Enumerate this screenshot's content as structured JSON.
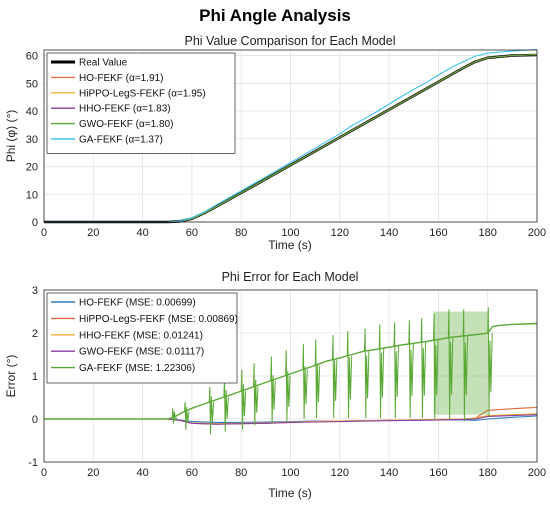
{
  "figure": {
    "title": "Phi Angle Analysis"
  },
  "chart_data": [
    {
      "type": "line",
      "title": "Phi Value Comparison for Each Model",
      "xlabel": "Time (s)",
      "ylabel": "Phi (φ) (°)",
      "xlim": [
        0,
        200
      ],
      "ylim": [
        0,
        62
      ],
      "xticks": [
        "0",
        "20",
        "40",
        "60",
        "80",
        "100",
        "120",
        "140",
        "160",
        "180",
        "200"
      ],
      "yticks": [
        "0",
        "10",
        "20",
        "30",
        "40",
        "50",
        "60"
      ],
      "grid": true,
      "legend_position": "top-left",
      "series": [
        {
          "name": "Real Value",
          "color": "#000000",
          "width": 2.6,
          "x": [
            0,
            50,
            55,
            60,
            65,
            70,
            80,
            90,
            100,
            110,
            120,
            130,
            140,
            150,
            160,
            170,
            175,
            180,
            190,
            200
          ],
          "y": [
            0,
            0,
            0.2,
            1.2,
            3.2,
            5.6,
            10.5,
            15.5,
            20.5,
            25.5,
            30.5,
            35.5,
            40.5,
            45.5,
            50.5,
            55.5,
            57.8,
            59.2,
            60.0,
            60.2
          ]
        },
        {
          "name": "HO-FEKF (α=1.91)",
          "color": "#e8764a",
          "width": 1.1,
          "x": [
            0,
            50,
            55,
            60,
            65,
            70,
            80,
            90,
            100,
            110,
            120,
            130,
            140,
            150,
            160,
            170,
            175,
            180,
            190,
            200
          ],
          "y": [
            0,
            0,
            0.2,
            1.2,
            3.2,
            5.6,
            10.5,
            15.5,
            20.5,
            25.5,
            30.5,
            35.5,
            40.5,
            45.5,
            50.5,
            55.5,
            57.8,
            59.2,
            60.0,
            60.3
          ]
        },
        {
          "name": "HiPPO-LegS-FEKF (α=1.95)",
          "color": "#f2b233",
          "width": 1.1,
          "x": [
            0,
            50,
            55,
            60,
            65,
            70,
            80,
            90,
            100,
            110,
            120,
            130,
            140,
            150,
            160,
            170,
            175,
            180,
            190,
            200
          ],
          "y": [
            0,
            0,
            0.2,
            1.2,
            3.2,
            5.6,
            10.5,
            15.5,
            20.5,
            25.5,
            30.5,
            35.5,
            40.5,
            45.5,
            50.5,
            55.5,
            57.8,
            59.2,
            60.0,
            60.3
          ]
        },
        {
          "name": "HHO-FEKF (α=1.83)",
          "color": "#8a3fa0",
          "width": 1.1,
          "x": [
            0,
            50,
            55,
            60,
            65,
            70,
            80,
            90,
            100,
            110,
            120,
            130,
            140,
            150,
            160,
            170,
            175,
            180,
            190,
            200
          ],
          "y": [
            0,
            0,
            0.2,
            1.2,
            3.2,
            5.6,
            10.5,
            15.5,
            20.5,
            25.5,
            30.5,
            35.5,
            40.5,
            45.5,
            50.5,
            55.5,
            57.8,
            59.2,
            60.0,
            60.3
          ]
        },
        {
          "name": "GWO-FEKF (α=1.80)",
          "color": "#5aa834",
          "width": 1.1,
          "x": [
            0,
            50,
            55,
            60,
            65,
            70,
            80,
            90,
            100,
            110,
            120,
            130,
            140,
            150,
            160,
            170,
            175,
            180,
            190,
            200
          ],
          "y": [
            0,
            0,
            0.2,
            1.2,
            3.2,
            5.6,
            10.5,
            15.5,
            20.5,
            25.5,
            30.5,
            35.5,
            40.5,
            45.5,
            50.5,
            55.5,
            57.8,
            59.2,
            60.0,
            60.3
          ]
        },
        {
          "name": "GA-FEKF (α=1.37)",
          "color": "#3ec1ee",
          "width": 1.1,
          "x": [
            0,
            50,
            55,
            60,
            65,
            70,
            80,
            90,
            100,
            110,
            120,
            125,
            130,
            135,
            140,
            145,
            150,
            155,
            160,
            165,
            170,
            175,
            180,
            190,
            200
          ],
          "y": [
            0,
            0,
            0.3,
            1.5,
            3.6,
            6.2,
            11.2,
            16.3,
            21.4,
            26.6,
            31.8,
            34.8,
            37.2,
            39.8,
            42.5,
            45.2,
            47.8,
            50.2,
            53.0,
            55.6,
            57.8,
            59.8,
            60.9,
            61.6,
            62.2
          ]
        }
      ]
    },
    {
      "type": "line",
      "title": "Phi Error for Each Model",
      "xlabel": "Time (s)",
      "ylabel": "Error (°)",
      "xlim": [
        0,
        200
      ],
      "ylim": [
        -1,
        3
      ],
      "xticks": [
        "0",
        "20",
        "40",
        "60",
        "80",
        "100",
        "120",
        "140",
        "160",
        "180",
        "200"
      ],
      "yticks": [
        "-1",
        "0",
        "1",
        "2",
        "3"
      ],
      "grid": true,
      "legend_position": "top-left",
      "series": [
        {
          "name": "HO-FEKF (MSE: 0.00699)",
          "color": "#2f7fbf",
          "width": 1.1,
          "x": [
            0,
            50,
            55,
            60,
            70,
            80,
            90,
            100,
            110,
            120,
            130,
            140,
            150,
            160,
            170,
            175,
            180,
            190,
            200
          ],
          "y": [
            0,
            0,
            -0.02,
            -0.06,
            -0.08,
            -0.08,
            -0.07,
            -0.06,
            -0.05,
            -0.05,
            -0.04,
            -0.03,
            -0.03,
            -0.02,
            -0.02,
            -0.03,
            0.0,
            0.04,
            0.07
          ]
        },
        {
          "name": "HiPPO-LegS-FEKF (MSE: 0.00869)",
          "color": "#e06a3c",
          "width": 1.1,
          "x": [
            0,
            50,
            55,
            60,
            70,
            80,
            90,
            100,
            110,
            120,
            130,
            140,
            150,
            160,
            170,
            175,
            180,
            190,
            200
          ],
          "y": [
            0,
            0,
            -0.03,
            -0.1,
            -0.12,
            -0.11,
            -0.1,
            -0.08,
            -0.06,
            -0.05,
            -0.04,
            -0.03,
            -0.02,
            -0.01,
            0.0,
            0.02,
            0.2,
            0.24,
            0.27
          ]
        },
        {
          "name": "HHO-FEKF (MSE: 0.01241)",
          "color": "#f2b233",
          "width": 1.1,
          "x": [
            0,
            50,
            55,
            60,
            70,
            80,
            90,
            100,
            110,
            120,
            130,
            140,
            150,
            160,
            170,
            175,
            180,
            190,
            200
          ],
          "y": [
            0,
            0,
            -0.03,
            -0.09,
            -0.11,
            -0.1,
            -0.09,
            -0.07,
            -0.06,
            -0.05,
            -0.04,
            -0.03,
            -0.02,
            -0.01,
            0.0,
            0.02,
            0.08,
            0.1,
            0.12
          ]
        },
        {
          "name": "GWO-FEKF (MSE: 0.01117)",
          "color": "#8a3fa0",
          "width": 1.1,
          "x": [
            0,
            50,
            55,
            60,
            70,
            80,
            90,
            100,
            110,
            120,
            130,
            140,
            150,
            160,
            170,
            175,
            180,
            190,
            200
          ],
          "y": [
            0,
            0,
            -0.03,
            -0.1,
            -0.12,
            -0.11,
            -0.1,
            -0.08,
            -0.07,
            -0.06,
            -0.05,
            -0.04,
            -0.03,
            -0.02,
            -0.01,
            0.0,
            0.06,
            0.08,
            0.1
          ]
        },
        {
          "name": "GA-FEKF (MSE: 1.22306)",
          "color": "#5aa834",
          "width": 1.4,
          "x": [
            0,
            50,
            53,
            56,
            60,
            65,
            70,
            75,
            80,
            85,
            90,
            95,
            100,
            105,
            110,
            115,
            120,
            125,
            130,
            135,
            140,
            145,
            150,
            155,
            160,
            165,
            170,
            175,
            178,
            180,
            182,
            185,
            190,
            195,
            200
          ],
          "y": [
            0,
            0,
            0.05,
            0.15,
            0.25,
            0.35,
            0.45,
            0.55,
            0.65,
            0.75,
            0.85,
            0.95,
            1.05,
            1.15,
            1.25,
            1.35,
            1.42,
            1.5,
            1.58,
            1.62,
            1.67,
            1.72,
            1.76,
            1.8,
            1.85,
            1.9,
            1.93,
            1.96,
            1.98,
            2.0,
            2.15,
            2.18,
            2.2,
            2.21,
            2.22
          ],
          "spikes": [
            {
              "x": 52,
              "high": 0.25,
              "low": -0.1
            },
            {
              "x": 57,
              "high": 0.4,
              "low": -0.25
            },
            {
              "x": 67,
              "high": 0.75,
              "low": -0.35
            },
            {
              "x": 73,
              "high": 0.95,
              "low": -0.3
            },
            {
              "x": 80,
              "high": 1.15,
              "low": -0.25
            },
            {
              "x": 85,
              "high": 1.3,
              "low": -0.15
            },
            {
              "x": 92,
              "high": 1.45,
              "low": -0.1
            },
            {
              "x": 98,
              "high": 1.6,
              "low": -0.05
            },
            {
              "x": 105,
              "high": 1.75,
              "low": 0.0
            },
            {
              "x": 110,
              "high": 1.85,
              "low": 0.02
            },
            {
              "x": 117,
              "high": 1.95,
              "low": 0.02
            },
            {
              "x": 123,
              "high": 2.05,
              "low": 0.02
            },
            {
              "x": 130,
              "high": 2.1,
              "low": 0.02
            },
            {
              "x": 136,
              "high": 2.2,
              "low": 0.02
            },
            {
              "x": 142,
              "high": 2.25,
              "low": 0.02
            },
            {
              "x": 148,
              "high": 2.3,
              "low": 0.02
            },
            {
              "x": 153,
              "high": 2.35,
              "low": 0.02
            },
            {
              "x": 158,
              "high": 2.45,
              "low": 0.0
            },
            {
              "x": 164,
              "high": 2.55,
              "low": 0.0
            },
            {
              "x": 170,
              "high": 2.55,
              "low": -0.05
            },
            {
              "x": 180,
              "high": 2.6,
              "low": 0.05
            }
          ],
          "dense_band": {
            "x_start": 158,
            "x_end": 180,
            "high": 2.5,
            "low": 0.1
          }
        }
      ]
    }
  ]
}
